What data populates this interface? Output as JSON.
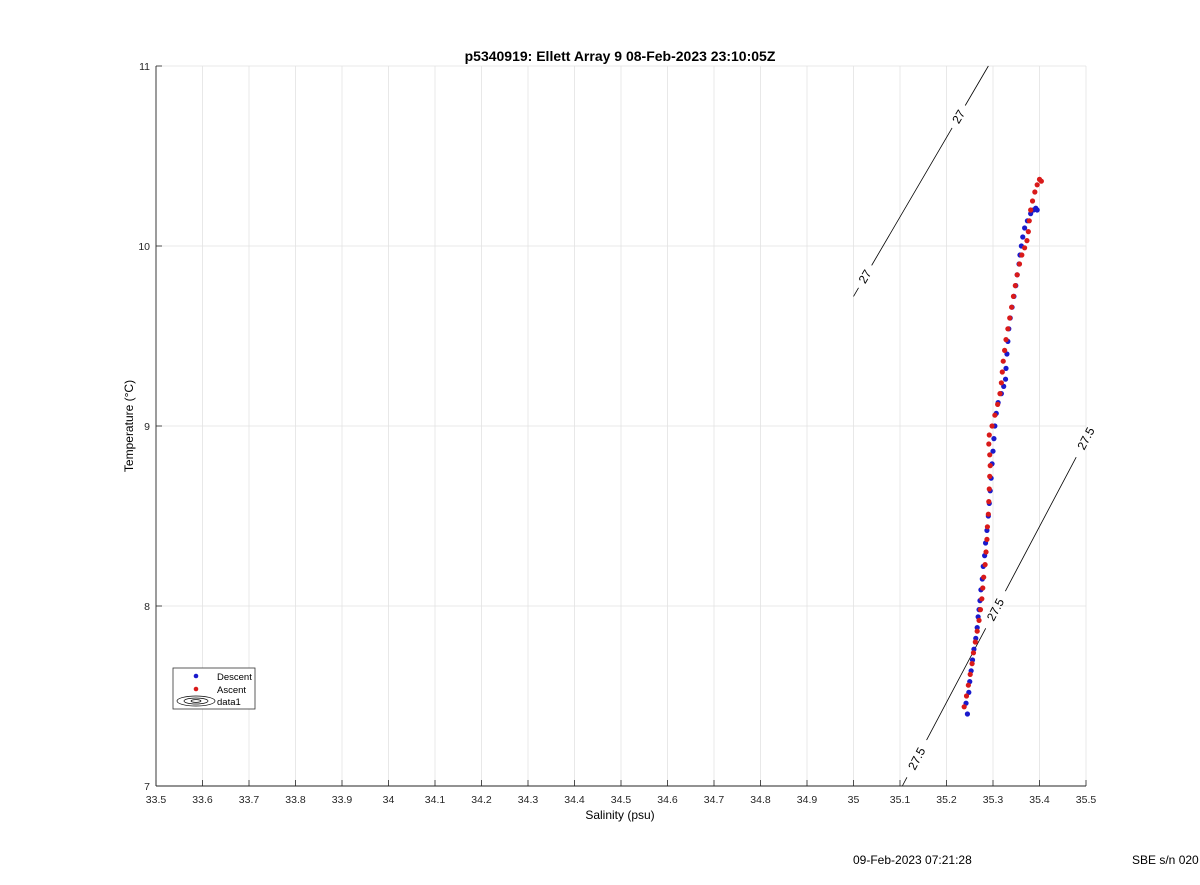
{
  "footer": {
    "timestamp": "09-Feb-2023 07:21:28",
    "sensor": "SBE s/n 020"
  },
  "chart_data": {
    "type": "scatter",
    "title": "p5340919: Ellett Array 9 08-Feb-2023 23:10:05Z",
    "xlabel": "Salinity (psu)",
    "ylabel": "Temperature (°C)",
    "xlim": [
      33.5,
      35.5
    ],
    "ylim": [
      7,
      11
    ],
    "xticks": [
      "33.5",
      "33.6",
      "33.7",
      "33.8",
      "33.9",
      "34",
      "34.1",
      "34.2",
      "34.3",
      "34.4",
      "34.5",
      "34.6",
      "34.7",
      "34.8",
      "34.9",
      "35",
      "35.1",
      "35.2",
      "35.3",
      "35.4",
      "35.5"
    ],
    "yticks": [
      "7",
      "8",
      "9",
      "10",
      "11"
    ],
    "grid": true,
    "legend": {
      "placement": "bottom-left",
      "entries": [
        "Descent",
        "Ascent",
        "data1"
      ]
    },
    "colors": {
      "Descent": "#1a1acc",
      "Ascent": "#d91a1a",
      "contour": "#000000",
      "grid": "#e3e3e3"
    },
    "contours": [
      {
        "label": "27",
        "points": [
          [
            35.0,
            9.72
          ],
          [
            35.29,
            11.0
          ]
        ],
        "label_positions": [
          [
            35.025,
            9.83
          ],
          [
            35.225,
            10.72
          ]
        ]
      },
      {
        "label": "27.5",
        "points": [
          [
            35.105,
            7.0
          ],
          [
            35.5,
            8.93
          ]
        ],
        "label_positions": [
          [
            35.13,
            7.16
          ],
          [
            35.305,
            7.98
          ],
          [
            35.485,
            8.98
          ]
        ]
      }
    ],
    "series": [
      {
        "name": "Descent",
        "points": [
          [
            35.245,
            7.4
          ],
          [
            35.242,
            7.46
          ],
          [
            35.248,
            7.52
          ],
          [
            35.25,
            7.58
          ],
          [
            35.253,
            7.64
          ],
          [
            35.256,
            7.7
          ],
          [
            35.259,
            7.76
          ],
          [
            35.263,
            7.82
          ],
          [
            35.266,
            7.88
          ],
          [
            35.268,
            7.94
          ],
          [
            35.27,
            7.98
          ],
          [
            35.272,
            8.03
          ],
          [
            35.274,
            8.09
          ],
          [
            35.277,
            8.15
          ],
          [
            35.279,
            8.22
          ],
          [
            35.282,
            8.28
          ],
          [
            35.284,
            8.35
          ],
          [
            35.287,
            8.42
          ],
          [
            35.29,
            8.5
          ],
          [
            35.292,
            8.57
          ],
          [
            35.294,
            8.64
          ],
          [
            35.296,
            8.71
          ],
          [
            35.298,
            8.79
          ],
          [
            35.3,
            8.86
          ],
          [
            35.302,
            8.93
          ],
          [
            35.304,
            9.0
          ],
          [
            35.307,
            9.07
          ],
          [
            35.311,
            9.13
          ],
          [
            35.318,
            9.18
          ],
          [
            35.323,
            9.22
          ],
          [
            35.327,
            9.26
          ],
          [
            35.328,
            9.32
          ],
          [
            35.33,
            9.4
          ],
          [
            35.332,
            9.47
          ],
          [
            35.334,
            9.54
          ],
          [
            35.337,
            9.6
          ],
          [
            35.341,
            9.66
          ],
          [
            35.345,
            9.72
          ],
          [
            35.349,
            9.78
          ],
          [
            35.352,
            9.84
          ],
          [
            35.356,
            9.9
          ],
          [
            35.358,
            9.95
          ],
          [
            35.361,
            10.0
          ],
          [
            35.364,
            10.05
          ],
          [
            35.368,
            10.1
          ],
          [
            35.374,
            10.14
          ],
          [
            35.381,
            10.18
          ],
          [
            35.387,
            10.2
          ],
          [
            35.392,
            10.21
          ],
          [
            35.395,
            10.2
          ]
        ]
      },
      {
        "name": "Ascent",
        "points": [
          [
            35.238,
            7.44
          ],
          [
            35.243,
            7.5
          ],
          [
            35.247,
            7.56
          ],
          [
            35.251,
            7.62
          ],
          [
            35.255,
            7.68
          ],
          [
            35.258,
            7.74
          ],
          [
            35.262,
            7.8
          ],
          [
            35.266,
            7.86
          ],
          [
            35.27,
            7.92
          ],
          [
            35.273,
            7.98
          ],
          [
            35.276,
            8.04
          ],
          [
            35.278,
            8.1
          ],
          [
            35.28,
            8.16
          ],
          [
            35.283,
            8.23
          ],
          [
            35.285,
            8.3
          ],
          [
            35.287,
            8.37
          ],
          [
            35.288,
            8.44
          ],
          [
            35.29,
            8.51
          ],
          [
            35.291,
            8.58
          ],
          [
            35.292,
            8.65
          ],
          [
            35.293,
            8.72
          ],
          [
            35.294,
            8.78
          ],
          [
            35.293,
            8.84
          ],
          [
            35.291,
            8.9
          ],
          [
            35.292,
            8.95
          ],
          [
            35.298,
            9.0
          ],
          [
            35.304,
            9.06
          ],
          [
            35.31,
            9.12
          ],
          [
            35.315,
            9.18
          ],
          [
            35.318,
            9.24
          ],
          [
            35.32,
            9.3
          ],
          [
            35.322,
            9.36
          ],
          [
            35.325,
            9.42
          ],
          [
            35.328,
            9.48
          ],
          [
            35.332,
            9.54
          ],
          [
            35.336,
            9.6
          ],
          [
            35.34,
            9.66
          ],
          [
            35.344,
            9.72
          ],
          [
            35.348,
            9.78
          ],
          [
            35.352,
            9.84
          ],
          [
            35.357,
            9.9
          ],
          [
            35.362,
            9.95
          ],
          [
            35.368,
            9.99
          ],
          [
            35.373,
            10.03
          ],
          [
            35.376,
            10.08
          ],
          [
            35.378,
            10.14
          ],
          [
            35.381,
            10.2
          ],
          [
            35.385,
            10.25
          ],
          [
            35.39,
            10.3
          ],
          [
            35.395,
            10.34
          ],
          [
            35.4,
            10.37
          ],
          [
            35.404,
            10.36
          ]
        ]
      }
    ]
  }
}
